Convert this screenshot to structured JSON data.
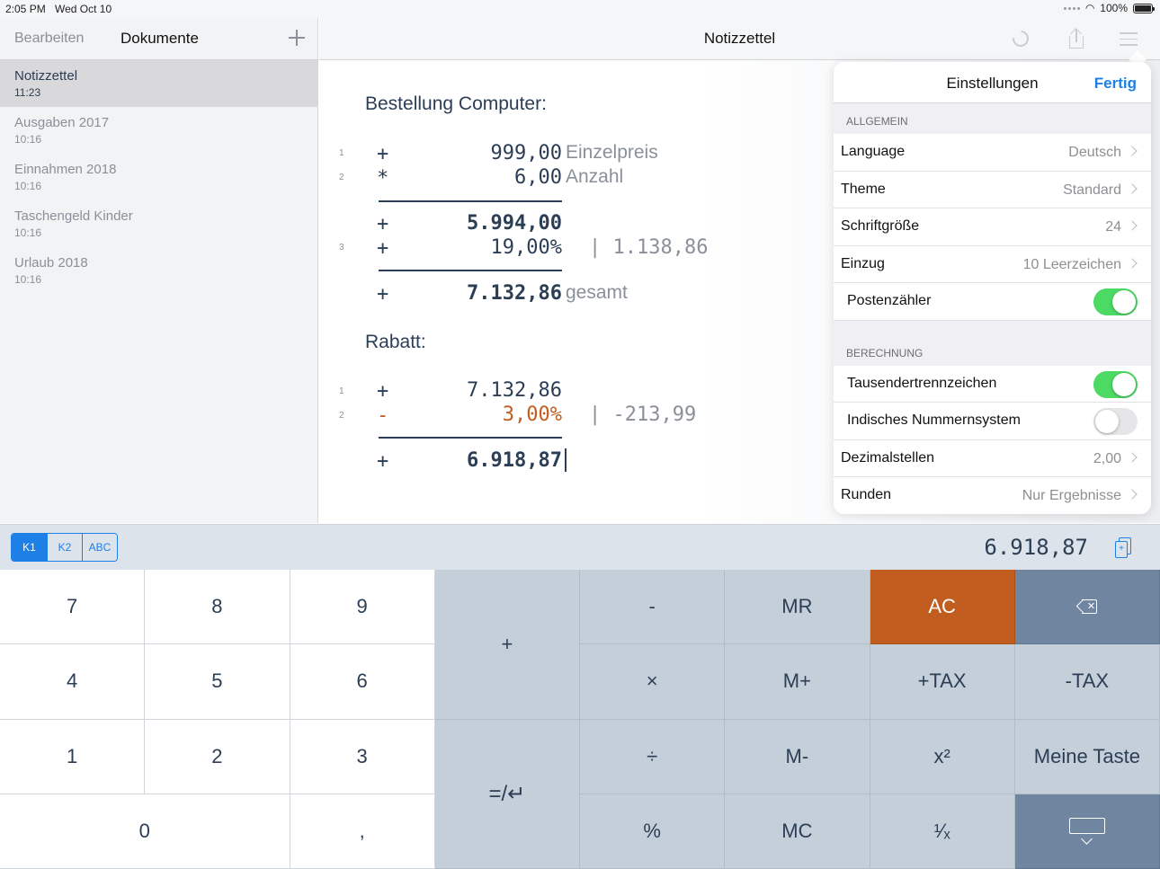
{
  "statusbar": {
    "time": "2:05 PM",
    "date": "Wed Oct 10",
    "battery": "100%"
  },
  "sidebar": {
    "edit_label": "Bearbeiten",
    "title": "Dokumente",
    "documents": [
      {
        "name": "Notizzettel",
        "time": "11:23",
        "active": true
      },
      {
        "name": "Ausgaben 2017",
        "time": "10:16"
      },
      {
        "name": "Einnahmen 2018",
        "time": "10:16"
      },
      {
        "name": "Taschengeld Kinder",
        "time": "10:16"
      },
      {
        "name": "Urlaub 2018",
        "time": "10:16"
      }
    ]
  },
  "header": {
    "title": "Notizzettel"
  },
  "document": {
    "block1": {
      "heading": "Bestellung Computer:",
      "lines": [
        {
          "ln": "1",
          "op": "+",
          "value": "999,00",
          "label": "Einzelpreis"
        },
        {
          "ln": "2",
          "op": "*",
          "value": "6,00",
          "label": "Anzahl"
        }
      ],
      "subtotal": {
        "op": "+",
        "value": "5.994,00"
      },
      "tax": {
        "ln": "3",
        "op": "+",
        "value": "19,00%",
        "aux": "| 1.138,86"
      },
      "total": {
        "op": "+",
        "value": "7.132,86",
        "label": "gesamt"
      }
    },
    "block2": {
      "heading": "Rabatt:",
      "lines": [
        {
          "ln": "1",
          "op": "+",
          "value": "7.132,86"
        },
        {
          "ln": "2",
          "op": "-",
          "value": "3,00%",
          "aux": "| -213,99"
        }
      ],
      "total": {
        "op": "+",
        "value": "6.918,87"
      }
    }
  },
  "settings": {
    "title": "Einstellungen",
    "done": "Fertig",
    "section_general": "ALLGEMEIN",
    "language": {
      "label": "Language",
      "value": "Deutsch"
    },
    "theme": {
      "label": "Theme",
      "value": "Standard"
    },
    "fontsize": {
      "label": "Schriftgröße",
      "value": "24"
    },
    "indent": {
      "label": "Einzug",
      "value": "10 Leerzeichen"
    },
    "counter": {
      "label": "Postenzähler",
      "on": true
    },
    "section_calc": "BERECHNUNG",
    "thousands": {
      "label": "Tausendertrennzeichen",
      "on": true
    },
    "indian": {
      "label": "Indisches Nummernsystem",
      "on": false
    },
    "decimals": {
      "label": "Dezimalstellen",
      "value": "2,00"
    },
    "rounding": {
      "label": "Runden",
      "value": "Nur Ergebnisse"
    }
  },
  "calcbar": {
    "tabs": [
      "K1",
      "K2",
      "ABC"
    ],
    "active_tab": "K1",
    "display": "6.918,87",
    "copy_icon": "copy-plus-icon"
  },
  "keys": {
    "k7": "7",
    "k8": "8",
    "k9": "9",
    "k4": "4",
    "k5": "5",
    "k6": "6",
    "k1": "1",
    "k2": "2",
    "k3": "3",
    "k0": "0",
    "comma": ",",
    "plus": "+",
    "minus": "-",
    "times": "×",
    "divide": "÷",
    "percent": "%",
    "mr": "MR",
    "mplus": "M+",
    "mminus": "M-",
    "mc": "MC",
    "ac": "AC",
    "addtax": "+TAX",
    "subtax": "-TAX",
    "square": "x²",
    "reciprocal": "¹⁄ₓ",
    "custom": "Meine Taste",
    "equals": "=/↵"
  },
  "colors": {
    "accent": "#1e7fe6",
    "orange": "#c15d1f",
    "toggle_on": "#4cd964",
    "text": "#2c3e55"
  }
}
